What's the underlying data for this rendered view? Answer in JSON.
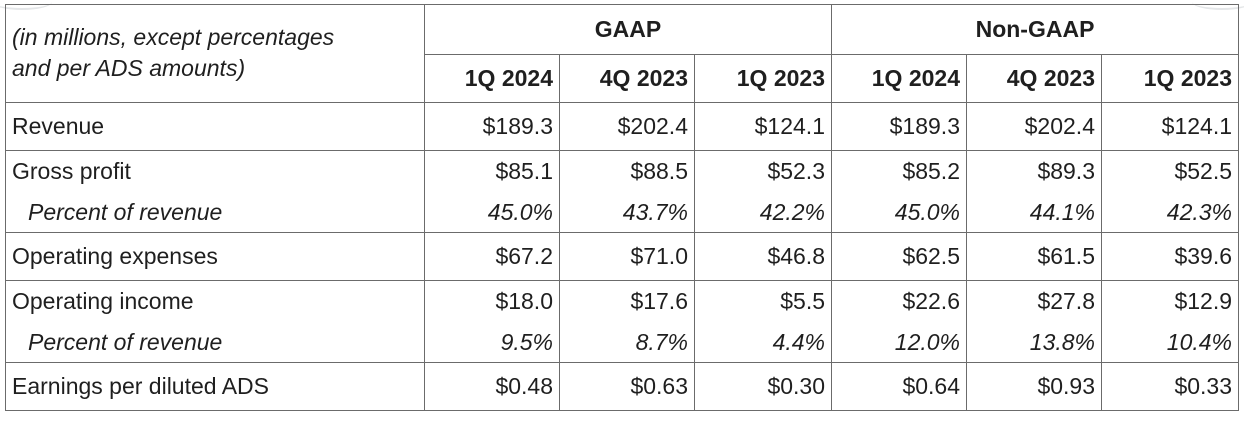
{
  "table": {
    "header_label_line1": "(in millions, except percentages",
    "header_label_line2": "and per ADS amounts)",
    "groups": [
      "GAAP",
      "Non-GAAP"
    ],
    "columns": [
      "1Q 2024",
      "4Q 2023",
      "1Q 2023",
      "1Q 2024",
      "4Q 2023",
      "1Q 2023"
    ],
    "rows": [
      {
        "label": "Revenue",
        "values": [
          "$189.3",
          "$202.4",
          "$124.1",
          "$189.3",
          "$202.4",
          "$124.1"
        ]
      },
      {
        "label": "Gross profit",
        "values": [
          "$85.1",
          "$88.5",
          "$52.3",
          "$85.2",
          "$89.3",
          "$52.5"
        ]
      },
      {
        "label": "Percent of revenue",
        "values": [
          "45.0%",
          "43.7%",
          "42.2%",
          "45.0%",
          "44.1%",
          "42.3%"
        ]
      },
      {
        "label": "Operating expenses",
        "values": [
          "$67.2",
          "$71.0",
          "$46.8",
          "$62.5",
          "$61.5",
          "$39.6"
        ]
      },
      {
        "label": "Operating income",
        "values": [
          "$18.0",
          "$17.6",
          "$5.5",
          "$22.6",
          "$27.8",
          "$12.9"
        ]
      },
      {
        "label": "Percent of revenue",
        "values": [
          "9.5%",
          "8.7%",
          "4.4%",
          "12.0%",
          "13.8%",
          "10.4%"
        ]
      },
      {
        "label": "Earnings per diluted ADS",
        "values": [
          "$0.48",
          "$0.63",
          "$0.30",
          "$0.64",
          "$0.93",
          "$0.33"
        ]
      }
    ]
  }
}
